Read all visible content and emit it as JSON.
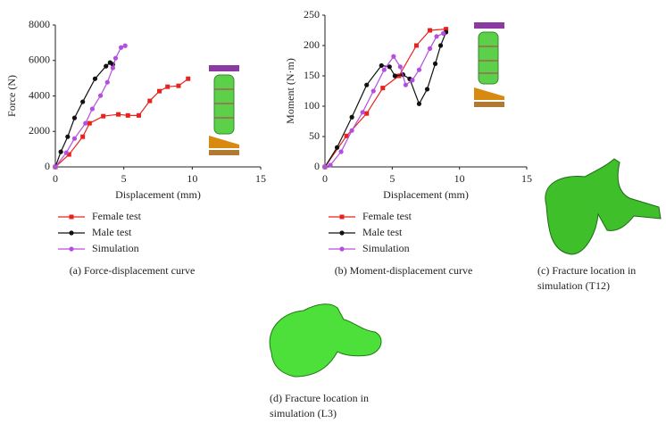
{
  "chart_data": [
    {
      "type": "line",
      "caption": "(a)  Force-displacement curve",
      "x_label": "Displacement (mm)",
      "y_label": "Force (N)",
      "xlim": [
        0,
        15
      ],
      "xticks": [
        0,
        5,
        10,
        15
      ],
      "ylim": [
        0,
        8000
      ],
      "yticks": [
        0,
        2000,
        4000,
        6000,
        8000
      ],
      "series": [
        {
          "name": "Female test",
          "color": "#e8231e",
          "marker": "square",
          "x": [
            0,
            1,
            2,
            2.5,
            3.5,
            4.6,
            5.3,
            6.1,
            6.9,
            7.6,
            8.2,
            9.0,
            9.7
          ],
          "values": [
            0,
            700,
            1700,
            2460,
            2860,
            2960,
            2900,
            2900,
            3720,
            4270,
            4520,
            4570,
            4970
          ]
        },
        {
          "name": "Male test",
          "color": "#111111",
          "marker": "circle",
          "x": [
            0,
            0.4,
            0.9,
            1.4,
            2.0,
            2.9,
            3.7,
            4.0,
            4.2
          ],
          "values": [
            0,
            850,
            1700,
            2760,
            3670,
            4970,
            5680,
            5880,
            5780
          ]
        },
        {
          "name": "Simulation",
          "color": "#b44ee0",
          "marker": "circle",
          "x": [
            0,
            0.8,
            1.4,
            2.2,
            2.7,
            3.3,
            3.8,
            4.2,
            4.4,
            4.8,
            5.1
          ],
          "values": [
            0,
            800,
            1600,
            2460,
            3270,
            4020,
            4770,
            5580,
            6130,
            6730,
            6830
          ]
        }
      ]
    },
    {
      "type": "line",
      "caption": "(b)  Moment-displacement curve",
      "x_label": "Displacement (mm)",
      "y_label": "Moment (N·m)",
      "xlim": [
        0,
        15
      ],
      "xticks": [
        0,
        5,
        10,
        15
      ],
      "ylim": [
        0,
        250
      ],
      "yticks": [
        0,
        50,
        100,
        150,
        200,
        250
      ],
      "series": [
        {
          "name": "Female test",
          "color": "#e8231e",
          "marker": "square",
          "x": [
            0,
            1.6,
            3.1,
            4.3,
            5.5,
            6.8,
            7.8,
            9.0
          ],
          "values": [
            0,
            51,
            88,
            130,
            150,
            200,
            225,
            227
          ]
        },
        {
          "name": "Male test",
          "color": "#111111",
          "marker": "circle",
          "x": [
            0,
            0.9,
            2.0,
            3.1,
            4.2,
            4.8,
            5.2,
            5.8,
            6.3,
            7.0,
            7.6,
            8.2,
            8.6,
            9.0
          ],
          "values": [
            0,
            32,
            82,
            135,
            167,
            165,
            150,
            152,
            145,
            104,
            128,
            170,
            200,
            222
          ]
        },
        {
          "name": "Simulation",
          "color": "#b44ee0",
          "marker": "circle",
          "x": [
            0,
            0.4,
            1.2,
            2.0,
            2.8,
            3.6,
            4.4,
            5.1,
            5.6,
            6.0,
            6.5,
            7.0,
            7.8,
            8.3,
            8.8
          ],
          "values": [
            0,
            3,
            25,
            60,
            90,
            125,
            160,
            182,
            165,
            135,
            143,
            160,
            195,
            215,
            220
          ]
        }
      ]
    }
  ],
  "images": [
    {
      "caption": [
        "(c)  Fracture location in",
        "simulation (T12)"
      ]
    },
    {
      "caption": [
        "(d)  Fracture location in",
        "simulation (L3)"
      ]
    }
  ]
}
